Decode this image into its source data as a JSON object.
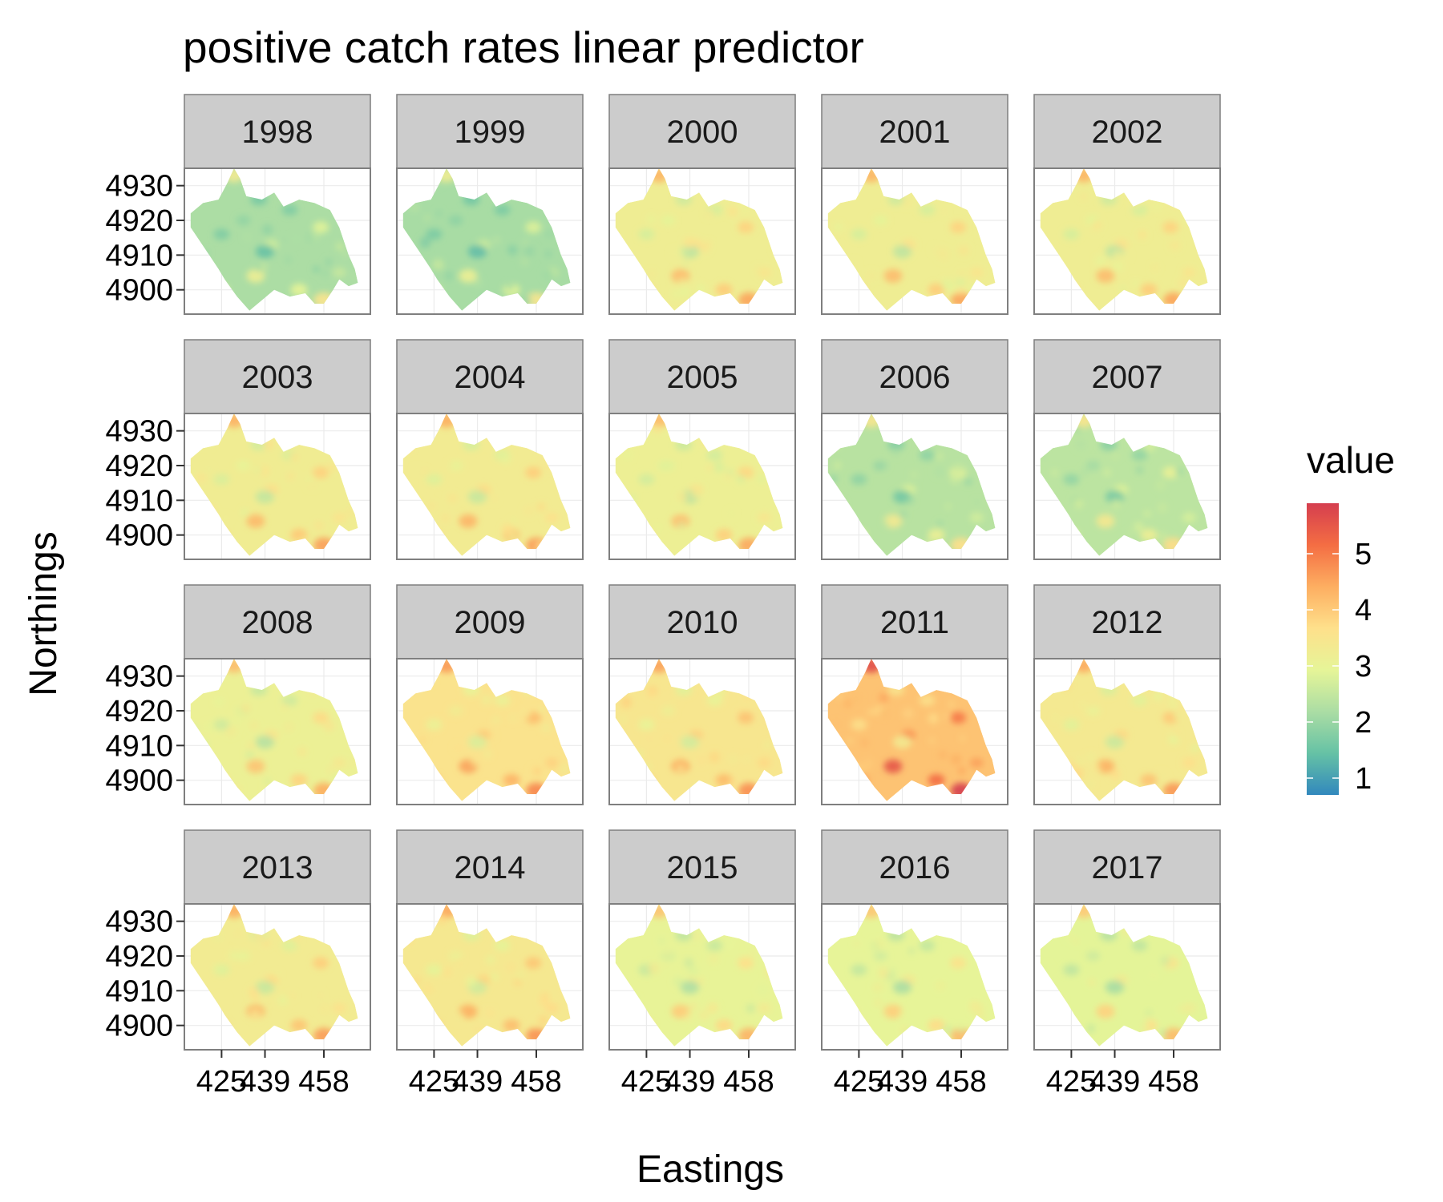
{
  "chart_data": {
    "type": "heatmap",
    "title": "positive catch rates linear predictor",
    "xlabel": "Eastings",
    "ylabel": "Northings",
    "x_ticks": [
      "425",
      "439",
      "458"
    ],
    "y_ticks": [
      "4930",
      "4920",
      "4910",
      "4900"
    ],
    "xlim": [
      413,
      473
    ],
    "ylim": [
      4893,
      4935
    ],
    "legend": {
      "title": "value",
      "position": "right",
      "ticks": [
        "5",
        "4",
        "3",
        "2",
        "1"
      ],
      "range": [
        0.7,
        5.9
      ],
      "palette": "Spectral",
      "colors": [
        "#3288bd",
        "#66c2a5",
        "#abdda4",
        "#e6f598",
        "#fee08b",
        "#fdae61",
        "#f46d43",
        "#d53e4f"
      ]
    },
    "grid": true,
    "panels": [
      {
        "label": "1998",
        "mean": 2.2
      },
      {
        "label": "1999",
        "mean": 2.15
      },
      {
        "label": "2000",
        "mean": 3.2
      },
      {
        "label": "2001",
        "mean": 3.2
      },
      {
        "label": "2002",
        "mean": 3.2
      },
      {
        "label": "2003",
        "mean": 3.25
      },
      {
        "label": "2004",
        "mean": 3.3
      },
      {
        "label": "2005",
        "mean": 3.15
      },
      {
        "label": "2006",
        "mean": 2.35
      },
      {
        "label": "2007",
        "mean": 2.4
      },
      {
        "label": "2008",
        "mean": 3.1
      },
      {
        "label": "2009",
        "mean": 3.55
      },
      {
        "label": "2010",
        "mean": 3.45
      },
      {
        "label": "2011",
        "mean": 4.1
      },
      {
        "label": "2012",
        "mean": 3.35
      },
      {
        "label": "2013",
        "mean": 3.3
      },
      {
        "label": "2014",
        "mean": 3.4
      },
      {
        "label": "2015",
        "mean": 3.0
      },
      {
        "label": "2016",
        "mean": 2.95
      },
      {
        "label": "2017",
        "mean": 2.9
      }
    ]
  }
}
